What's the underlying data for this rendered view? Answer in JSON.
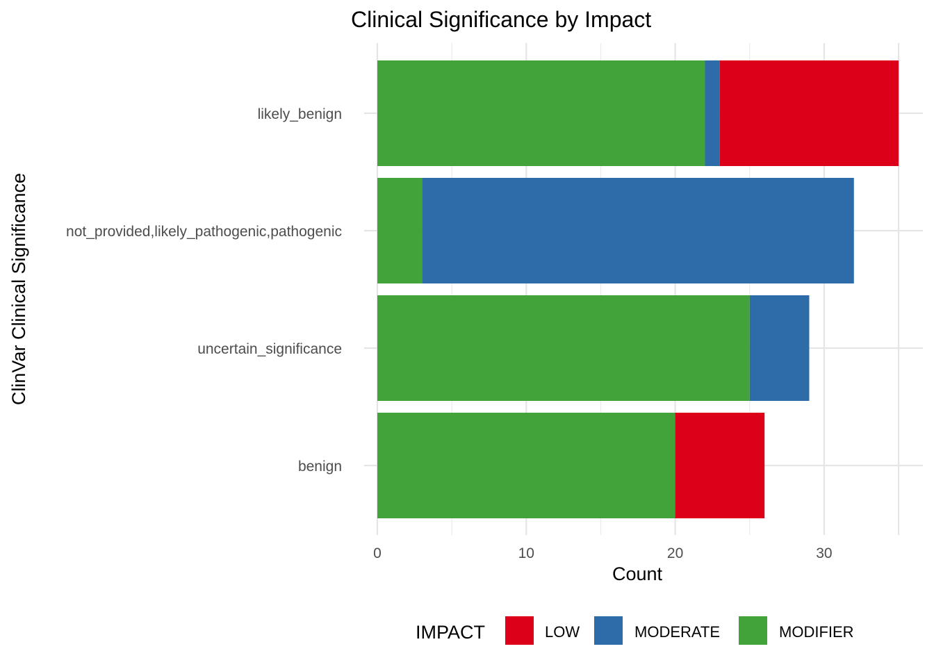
{
  "chart_data": {
    "type": "bar",
    "orientation": "horizontal",
    "stacked": true,
    "title": "Clinical Significance by Impact",
    "xlabel": "Count",
    "ylabel": "ClinVar Clinical Significance",
    "categories": [
      "likely_benign",
      "not_provided,likely_pathogenic,pathogenic",
      "uncertain_significance",
      "benign"
    ],
    "stack_order": [
      "MODIFIER",
      "MODERATE",
      "LOW"
    ],
    "series": [
      {
        "name": "LOW",
        "color": "#DC0019",
        "values": [
          12,
          0,
          0,
          6
        ]
      },
      {
        "name": "MODERATE",
        "color": "#2E6BA9",
        "values": [
          1,
          29,
          4,
          0
        ]
      },
      {
        "name": "MODIFIER",
        "color": "#42A33A",
        "values": [
          22,
          3,
          25,
          20
        ]
      }
    ],
    "xlim": [
      0,
      35
    ],
    "xticks": [
      0,
      10,
      20,
      30
    ],
    "xtick_labels": [
      "0",
      "10",
      "20",
      "30"
    ],
    "grid": true,
    "legend": {
      "title": "IMPACT",
      "placement": "bottom",
      "entries": [
        "LOW",
        "MODERATE",
        "MODIFIER"
      ]
    }
  }
}
